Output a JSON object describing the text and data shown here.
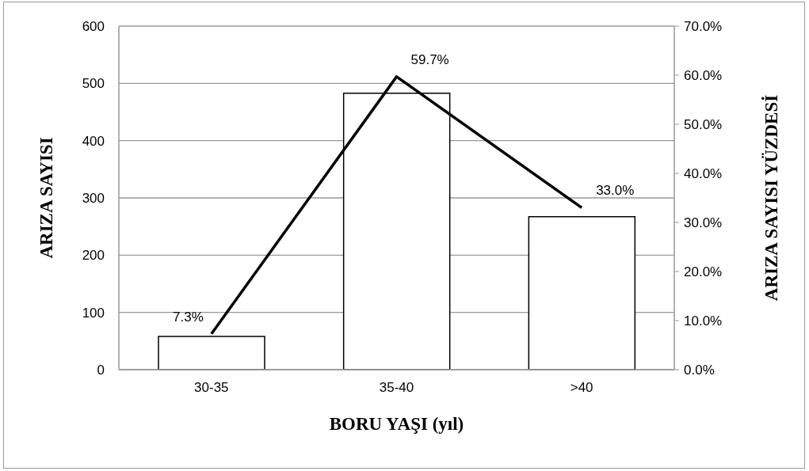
{
  "chart_data": {
    "type": "bar",
    "xlabel": "BORU YAŞI (yıl)",
    "ylabel": "ARIZA SAYISI",
    "y2label": "ARIZA SAYISI YÜZDESİ",
    "categories": [
      "30-35",
      "35-40",
      ">40"
    ],
    "series": [
      {
        "color": "#ffffff",
        "values": [
          58,
          483,
          267
        ]
      },
      {
        "type": "line",
        "axis": "y2",
        "color": "#000000",
        "values": [
          7.3,
          59.7,
          33.0
        ],
        "value_labels": [
          "7.3%",
          "59.7%",
          "33.0%"
        ]
      }
    ],
    "ylim": [
      0,
      600
    ],
    "yticks": [
      0,
      100,
      200,
      300,
      400,
      500,
      600
    ],
    "y2lim": [
      0,
      70
    ],
    "y2ticks": [
      {
        "value": 0,
        "label": "0.0%"
      },
      {
        "value": 10,
        "label": "10.0%"
      },
      {
        "value": 20,
        "label": "20.0%"
      },
      {
        "value": 30,
        "label": "30.0%"
      },
      {
        "value": 40,
        "label": "40.0%"
      },
      {
        "value": 50,
        "label": "50.0%"
      },
      {
        "value": 60,
        "label": "60.0%"
      },
      {
        "value": 70,
        "label": "70.0%"
      }
    ],
    "grid": "y",
    "marker": "none",
    "line_style": "solid"
  }
}
